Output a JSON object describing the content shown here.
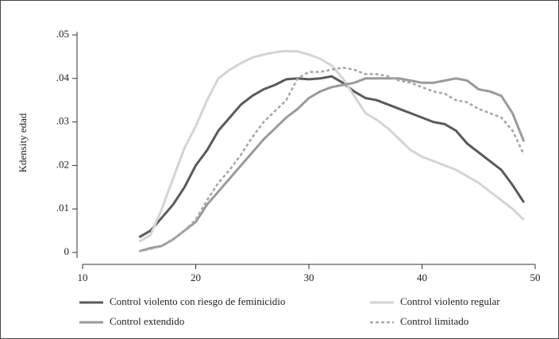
{
  "chart_data": {
    "type": "line",
    "y_label": "Kdensity edad",
    "x": [
      15,
      16,
      17,
      18,
      19,
      20,
      21,
      22,
      23,
      24,
      25,
      26,
      27,
      28,
      29,
      30,
      31,
      32,
      33,
      34,
      35,
      36,
      37,
      38,
      39,
      40,
      41,
      42,
      43,
      44,
      45,
      46,
      47,
      48,
      49
    ],
    "series": [
      {
        "name": "Control violento con riesgo de feminicidio",
        "color": "#5a5a5a",
        "style": "solid",
        "values": [
          0.0035,
          0.005,
          0.008,
          0.011,
          0.015,
          0.02,
          0.0235,
          0.028,
          0.031,
          0.034,
          0.036,
          0.0375,
          0.0385,
          0.0398,
          0.04,
          0.0398,
          0.04,
          0.0405,
          0.039,
          0.037,
          0.0355,
          0.035,
          0.034,
          0.033,
          0.032,
          0.031,
          0.03,
          0.0295,
          0.028,
          0.025,
          0.023,
          0.021,
          0.019,
          0.0155,
          0.0115
        ]
      },
      {
        "name": "Control violento regular",
        "color": "#d4d4d4",
        "style": "solid",
        "values": [
          0.0025,
          0.004,
          0.01,
          0.017,
          0.024,
          0.029,
          0.035,
          0.04,
          0.042,
          0.0435,
          0.0448,
          0.0455,
          0.046,
          0.0463,
          0.0462,
          0.0455,
          0.0445,
          0.043,
          0.04,
          0.036,
          0.032,
          0.0305,
          0.0285,
          0.026,
          0.0235,
          0.022,
          0.021,
          0.02,
          0.019,
          0.0175,
          0.016,
          0.014,
          0.012,
          0.01,
          0.0075
        ]
      },
      {
        "name": "Control extendido",
        "color": "#9a9a9a",
        "style": "solid",
        "values": [
          0.0003,
          0.001,
          0.0015,
          0.003,
          0.005,
          0.007,
          0.011,
          0.014,
          0.017,
          0.02,
          0.023,
          0.026,
          0.0285,
          0.031,
          0.033,
          0.0355,
          0.037,
          0.038,
          0.0385,
          0.039,
          0.04,
          0.04,
          0.04,
          0.04,
          0.0395,
          0.039,
          0.039,
          0.0395,
          0.04,
          0.0395,
          0.0375,
          0.037,
          0.036,
          0.032,
          0.0255
        ]
      },
      {
        "name": "Control limitado",
        "color": "#a8a8a8",
        "style": "dashed",
        "values": [
          0.0003,
          0.0008,
          0.0015,
          0.003,
          0.005,
          0.0075,
          0.012,
          0.016,
          0.019,
          0.0225,
          0.0265,
          0.03,
          0.0325,
          0.035,
          0.04,
          0.0415,
          0.0415,
          0.042,
          0.0425,
          0.042,
          0.041,
          0.041,
          0.0405,
          0.0395,
          0.039,
          0.038,
          0.037,
          0.0365,
          0.035,
          0.0345,
          0.033,
          0.032,
          0.031,
          0.028,
          0.0225
        ]
      }
    ],
    "xlim": [
      10,
      50
    ],
    "xticks": [
      10,
      20,
      30,
      40,
      50
    ],
    "ylim": [
      0,
      0.05
    ],
    "yticks": [
      0,
      {
        "value": 0.01,
        "label": ".01"
      },
      {
        "value": 0.02,
        "label": ".02"
      },
      {
        "value": 0.03,
        "label": ".03"
      },
      {
        "value": 0.04,
        "label": ".04"
      },
      {
        "value": 0.05,
        "label": ".05"
      }
    ],
    "grid": false
  }
}
